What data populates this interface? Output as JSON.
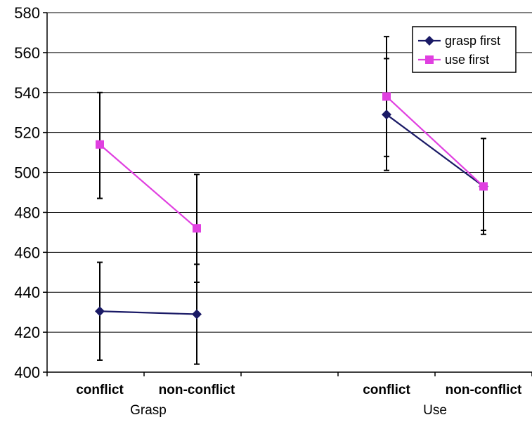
{
  "chart_data": {
    "type": "line",
    "title": "",
    "xlabel": "",
    "ylabel": "",
    "ylim": [
      400,
      580
    ],
    "y_ticks": [
      400,
      420,
      440,
      460,
      480,
      500,
      520,
      540,
      560,
      580
    ],
    "grid": true,
    "legend_position": "top-right",
    "groups": [
      {
        "label": "Grasp",
        "categories": [
          "conflict",
          "non-conflict"
        ]
      },
      {
        "label": "Use",
        "categories": [
          "conflict",
          "non-conflict"
        ]
      }
    ],
    "series": [
      {
        "name": "grasp first",
        "color": "#1a1a66",
        "marker": "diamond",
        "segments": [
          {
            "group": "Grasp",
            "values": [
              430.5,
              429
            ],
            "error_low": [
              406,
              404
            ],
            "error_high": [
              455,
              454
            ]
          },
          {
            "group": "Use",
            "values": [
              529,
              493
            ],
            "error_low": [
              501,
              469
            ],
            "error_high": [
              557,
              517
            ]
          }
        ]
      },
      {
        "name": "use first",
        "color": "#e040e0",
        "marker": "square",
        "segments": [
          {
            "group": "Grasp",
            "values": [
              514,
              472
            ],
            "error_low": [
              487,
              445
            ],
            "error_high": [
              540,
              499
            ]
          },
          {
            "group": "Use",
            "values": [
              538,
              493
            ],
            "error_low": [
              508,
              471
            ],
            "error_high": [
              568,
              517
            ]
          }
        ]
      }
    ]
  }
}
